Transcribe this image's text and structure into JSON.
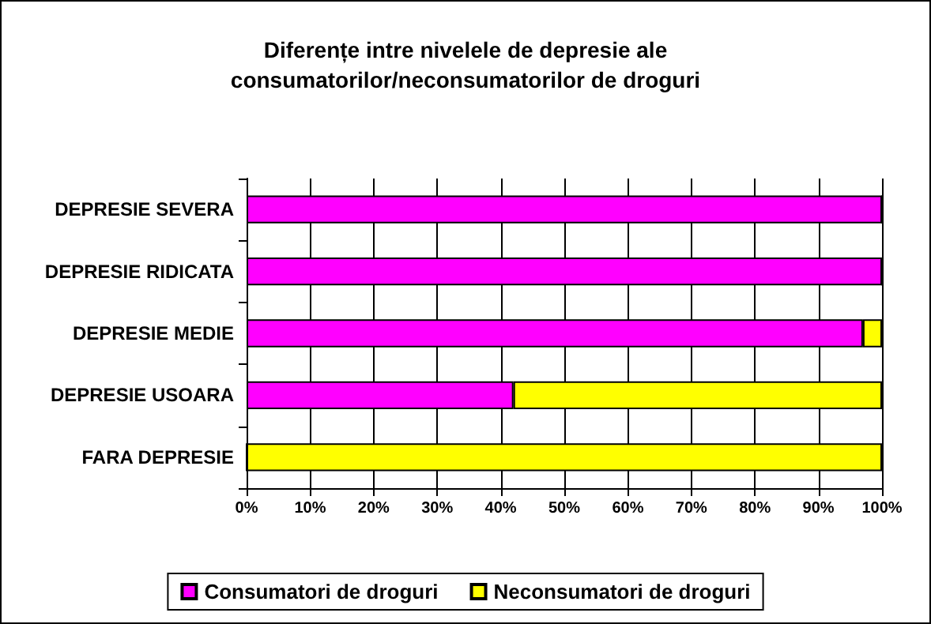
{
  "chart_data": {
    "type": "bar",
    "orientation": "horizontal",
    "stacked": true,
    "title": "Diferențe intre nivelele de depresie ale\nconsumatorilor/neconsumatorilor de droguri",
    "categories": [
      "DEPRESIE SEVERA",
      "DEPRESIE RIDICATA",
      "DEPRESIE MEDIE",
      "DEPRESIE USOARA",
      "FARA DEPRESIE"
    ],
    "series": [
      {
        "name": "Consumatori de droguri",
        "color": "#ff00ff",
        "values": [
          100,
          100,
          97,
          42,
          0
        ]
      },
      {
        "name": "Neconsumatori de droguri",
        "color": "#ffff00",
        "values": [
          0,
          0,
          3,
          58,
          100
        ]
      }
    ],
    "xlim": [
      0,
      100
    ],
    "xticks": [
      {
        "value": 0,
        "label": "0%"
      },
      {
        "value": 10,
        "label": "10%"
      },
      {
        "value": 20,
        "label": "20%"
      },
      {
        "value": 30,
        "label": "30%"
      },
      {
        "value": 40,
        "label": "40%"
      },
      {
        "value": 50,
        "label": "50%"
      },
      {
        "value": 60,
        "label": "60%"
      },
      {
        "value": 70,
        "label": "70%"
      },
      {
        "value": 80,
        "label": "80%"
      },
      {
        "value": 90,
        "label": "90%"
      },
      {
        "value": 100,
        "label": "100%"
      }
    ],
    "grid": "x",
    "legend": "bottom"
  }
}
